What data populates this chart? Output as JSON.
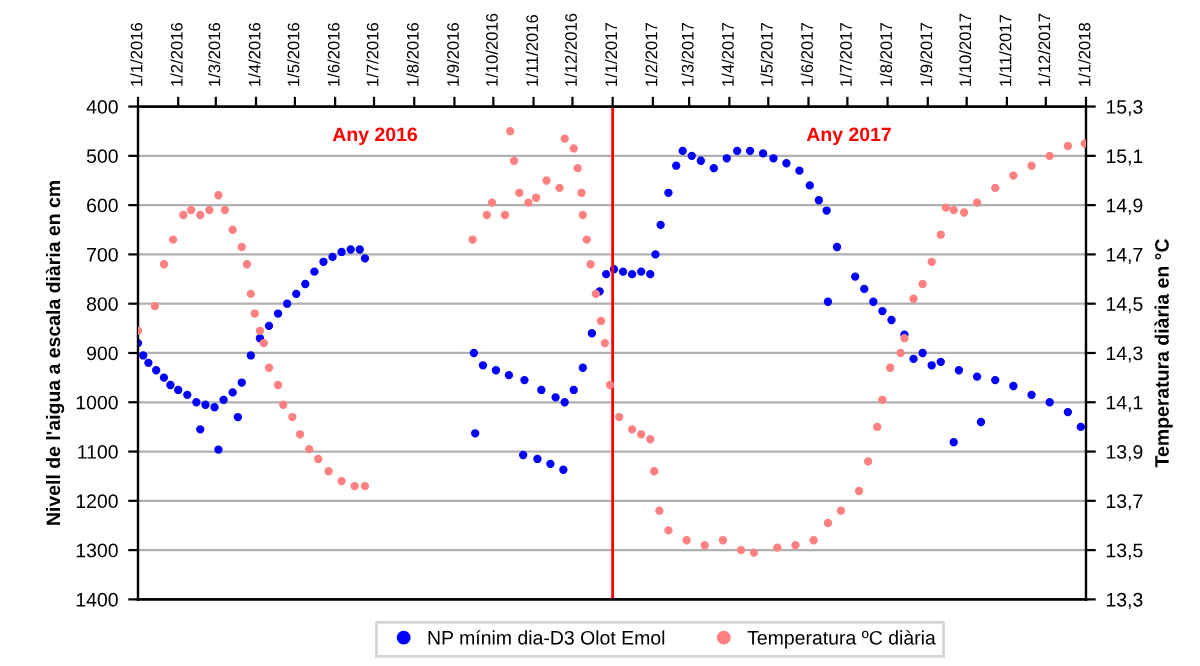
{
  "chart_data": {
    "type": "scatter",
    "xlabel": null,
    "ylabel": "Nivell de l'aigua a escala diària en cm",
    "y2label": "Temperatura diària en °C",
    "annotations": [
      "Any 2016",
      "Any 2017"
    ],
    "xlim": [
      "2016-01-01",
      "2018-01-01"
    ],
    "xticks": [
      {
        "value": "2016-01-01",
        "label": "1/1/2016"
      },
      {
        "value": "2016-02-01",
        "label": "1/2/2016"
      },
      {
        "value": "2016-03-01",
        "label": "1/3/2016"
      },
      {
        "value": "2016-04-01",
        "label": "1/4/2016"
      },
      {
        "value": "2016-05-01",
        "label": "1/5/2016"
      },
      {
        "value": "2016-06-01",
        "label": "1/6/2016"
      },
      {
        "value": "2016-07-01",
        "label": "1/7/2016"
      },
      {
        "value": "2016-08-01",
        "label": "1/8/2016"
      },
      {
        "value": "2016-09-01",
        "label": "1/9/2016"
      },
      {
        "value": "2016-10-01",
        "label": "1/10/2016"
      },
      {
        "value": "2016-11-01",
        "label": "1/11/2016"
      },
      {
        "value": "2016-12-01",
        "label": "1/12/2016"
      },
      {
        "value": "2017-01-01",
        "label": "1/1/2017"
      },
      {
        "value": "2017-02-01",
        "label": "1/2/2017"
      },
      {
        "value": "2017-03-01",
        "label": "1/3/2017"
      },
      {
        "value": "2017-04-01",
        "label": "1/4/2017"
      },
      {
        "value": "2017-05-01",
        "label": "1/5/2017"
      },
      {
        "value": "2017-06-01",
        "label": "1/6/2017"
      },
      {
        "value": "2017-07-01",
        "label": "1/7/2017"
      },
      {
        "value": "2017-08-01",
        "label": "1/8/2017"
      },
      {
        "value": "2017-09-01",
        "label": "1/9/2017"
      },
      {
        "value": "2017-10-01",
        "label": "1/10/2017"
      },
      {
        "value": "2017-11-01",
        "label": "1/11/2017"
      },
      {
        "value": "2017-12-01",
        "label": "1/12/2017"
      },
      {
        "value": "2018-01-01",
        "label": "1/1/2018"
      }
    ],
    "ylim": [
      1400,
      400
    ],
    "yticks": [
      400,
      500,
      600,
      700,
      800,
      900,
      1000,
      1100,
      1200,
      1300,
      1400
    ],
    "y2lim": [
      13.3,
      15.3
    ],
    "y2ticks": [
      {
        "value": 13.3,
        "label": "13,3"
      },
      {
        "value": 13.5,
        "label": "13,5"
      },
      {
        "value": 13.7,
        "label": "13,7"
      },
      {
        "value": 13.9,
        "label": "13,9"
      },
      {
        "value": 14.1,
        "label": "14,1"
      },
      {
        "value": 14.3,
        "label": "14,3"
      },
      {
        "value": 14.5,
        "label": "14,5"
      },
      {
        "value": 14.7,
        "label": "14,7"
      },
      {
        "value": 14.9,
        "label": "14,9"
      },
      {
        "value": 15.1,
        "label": "15,1"
      },
      {
        "value": 15.3,
        "label": "15,3"
      }
    ],
    "grid": "y",
    "legend": "bottom",
    "marker": "circle",
    "ref_lines": [
      {
        "axis": "x",
        "value": "2017-01-01",
        "label": null,
        "color": "#ff0000"
      }
    ],
    "series": [
      {
        "name": "NP mínim dia-D3 Olot Emol",
        "color": "#0000ff",
        "x": [
          "2016-01-01",
          "2016-01-05",
          "2016-01-09",
          "2016-01-15",
          "2016-01-21",
          "2016-01-26",
          "2016-02-01",
          "2016-02-08",
          "2016-02-15",
          "2016-02-18",
          "2016-02-22",
          "2016-02-29",
          "2016-03-03",
          "2016-03-07",
          "2016-03-14",
          "2016-03-18",
          "2016-03-21",
          "2016-03-28",
          "2016-04-04",
          "2016-04-11",
          "2016-04-18",
          "2016-04-25",
          "2016-05-02",
          "2016-05-09",
          "2016-05-16",
          "2016-05-23",
          "2016-05-30",
          "2016-06-06",
          "2016-06-13",
          "2016-06-20",
          "2016-06-24",
          "2016-09-16",
          "2016-09-17",
          "2016-09-23",
          "2016-10-03",
          "2016-10-13",
          "2016-10-24",
          "2016-10-25",
          "2016-11-04",
          "2016-11-07",
          "2016-11-14",
          "2016-11-18",
          "2016-11-24",
          "2016-11-25",
          "2016-12-02",
          "2016-12-09",
          "2016-12-16",
          "2016-12-22",
          "2016-12-27",
          "2017-01-02",
          "2017-01-09",
          "2017-01-16",
          "2017-01-23",
          "2017-01-30",
          "2017-02-03",
          "2017-02-07",
          "2017-02-13",
          "2017-02-19",
          "2017-02-24",
          "2017-03-03",
          "2017-03-10",
          "2017-03-20",
          "2017-03-30",
          "2017-04-07",
          "2017-04-17",
          "2017-04-27",
          "2017-05-05",
          "2017-05-15",
          "2017-05-25",
          "2017-06-02",
          "2017-06-09",
          "2017-06-15",
          "2017-06-16",
          "2017-06-23",
          "2017-07-07",
          "2017-07-14",
          "2017-07-21",
          "2017-07-28",
          "2017-08-04",
          "2017-08-14",
          "2017-08-21",
          "2017-08-28",
          "2017-09-04",
          "2017-09-11",
          "2017-09-21",
          "2017-09-25",
          "2017-10-09",
          "2017-10-12",
          "2017-10-23",
          "2017-11-06",
          "2017-11-20",
          "2017-12-04",
          "2017-12-18",
          "2017-12-28"
        ],
        "values": [
          880,
          905,
          920,
          935,
          950,
          965,
          975,
          985,
          1000,
          1055,
          1005,
          1010,
          1096,
          995,
          980,
          1030,
          960,
          905,
          870,
          845,
          820,
          800,
          780,
          760,
          735,
          715,
          705,
          695,
          690,
          690,
          708,
          900,
          1063,
          925,
          935,
          945,
          1107,
          955,
          1115,
          975,
          1125,
          990,
          1137,
          1000,
          975,
          930,
          860,
          775,
          740,
          730,
          735,
          740,
          735,
          740,
          700,
          640,
          575,
          520,
          490,
          500,
          510,
          525,
          505,
          490,
          490,
          495,
          505,
          515,
          530,
          560,
          590,
          611,
          796,
          685,
          745,
          770,
          796,
          815,
          833,
          863,
          912,
          900,
          925,
          918,
          1081,
          935,
          948,
          1040,
          955,
          967,
          985,
          1000,
          1020,
          1050
        ]
      },
      {
        "name": "Temperatura ºC diària",
        "color": "#ff8080",
        "axis": "y2",
        "x": [
          "2016-01-01",
          "2016-01-14",
          "2016-01-21",
          "2016-01-28",
          "2016-02-05",
          "2016-02-11",
          "2016-02-18",
          "2016-02-25",
          "2016-03-03",
          "2016-03-08",
          "2016-03-14",
          "2016-03-21",
          "2016-03-25",
          "2016-03-28",
          "2016-03-31",
          "2016-04-04",
          "2016-04-07",
          "2016-04-11",
          "2016-04-18",
          "2016-04-22",
          "2016-04-29",
          "2016-05-05",
          "2016-05-12",
          "2016-05-19",
          "2016-05-27",
          "2016-06-06",
          "2016-06-16",
          "2016-06-24",
          "2016-09-15",
          "2016-09-26",
          "2016-09-30",
          "2016-10-10",
          "2016-10-14",
          "2016-10-17",
          "2016-10-21",
          "2016-10-28",
          "2016-11-03",
          "2016-11-11",
          "2016-11-21",
          "2016-11-25",
          "2016-12-02",
          "2016-12-05",
          "2016-12-08",
          "2016-12-09",
          "2016-12-12",
          "2016-12-15",
          "2016-12-19",
          "2016-12-23",
          "2016-12-26",
          "2016-12-30",
          "2017-01-06",
          "2017-01-16",
          "2017-01-23",
          "2017-01-30",
          "2017-02-02",
          "2017-02-06",
          "2017-02-13",
          "2017-02-27",
          "2017-03-13",
          "2017-03-27",
          "2017-04-10",
          "2017-04-20",
          "2017-05-08",
          "2017-05-22",
          "2017-06-05",
          "2017-06-16",
          "2017-06-26",
          "2017-07-10",
          "2017-07-17",
          "2017-07-24",
          "2017-07-28",
          "2017-08-03",
          "2017-08-11",
          "2017-08-14",
          "2017-08-21",
          "2017-08-28",
          "2017-09-04",
          "2017-09-11",
          "2017-09-15",
          "2017-09-21",
          "2017-09-29",
          "2017-10-09",
          "2017-10-23",
          "2017-11-06",
          "2017-11-20",
          "2017-12-04",
          "2017-12-18",
          "2017-12-31"
        ],
        "values": [
          14.39,
          14.49,
          14.66,
          14.76,
          14.86,
          14.88,
          14.86,
          14.88,
          14.94,
          14.88,
          14.8,
          14.73,
          14.66,
          14.54,
          14.46,
          14.39,
          14.34,
          14.24,
          14.17,
          14.09,
          14.04,
          13.97,
          13.91,
          13.87,
          13.82,
          13.78,
          13.76,
          13.76,
          14.76,
          14.86,
          14.91,
          14.86,
          15.2,
          15.08,
          14.95,
          14.91,
          14.93,
          15.0,
          14.97,
          15.17,
          15.13,
          15.05,
          14.95,
          14.86,
          14.76,
          14.66,
          14.54,
          14.43,
          14.34,
          14.17,
          14.04,
          13.99,
          13.97,
          13.95,
          13.82,
          13.66,
          13.58,
          13.54,
          13.52,
          13.54,
          13.5,
          13.49,
          13.51,
          13.52,
          13.54,
          13.61,
          13.66,
          13.74,
          13.86,
          14.0,
          14.11,
          14.24,
          14.3,
          14.36,
          14.52,
          14.58,
          14.67,
          14.78,
          14.89,
          14.88,
          14.87,
          14.91,
          14.97,
          15.02,
          15.06,
          15.1,
          15.14,
          15.15
        ]
      }
    ]
  }
}
